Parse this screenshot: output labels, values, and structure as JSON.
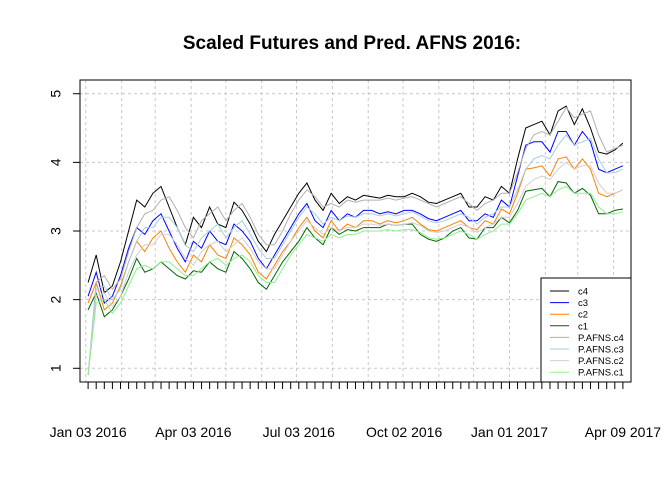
{
  "chart_data": {
    "type": "line",
    "title": "Scaled Futures and Pred. AFNS 2016:",
    "xlabel": "",
    "ylabel": "",
    "ylim": [
      0.8,
      5.2
    ],
    "yticks": [
      1,
      2,
      3,
      4,
      5
    ],
    "xlim": [
      "2015-12-27",
      "2017-04-16"
    ],
    "x_tick_labels": [
      {
        "date": "2016-01-03",
        "label": "Jan 03 2016"
      },
      {
        "date": "2016-04-03",
        "label": "Apr 03 2016"
      },
      {
        "date": "2016-07-03",
        "label": "Jul 03 2016"
      },
      {
        "date": "2016-10-02",
        "label": "Oct 02 2016"
      },
      {
        "date": "2017-01-01",
        "label": "Jan 01 2017"
      },
      {
        "date": "2017-04-09",
        "label": "Apr 09 2017"
      }
    ],
    "grid": true,
    "legend_position": "bottom-right",
    "x": [
      "2016-01-03",
      "2016-01-10",
      "2016-01-17",
      "2016-01-24",
      "2016-01-31",
      "2016-02-07",
      "2016-02-14",
      "2016-02-21",
      "2016-02-28",
      "2016-03-06",
      "2016-03-13",
      "2016-03-20",
      "2016-03-27",
      "2016-04-03",
      "2016-04-10",
      "2016-04-17",
      "2016-04-24",
      "2016-05-01",
      "2016-05-08",
      "2016-05-15",
      "2016-05-22",
      "2016-05-29",
      "2016-06-05",
      "2016-06-12",
      "2016-06-19",
      "2016-06-26",
      "2016-07-03",
      "2016-07-10",
      "2016-07-17",
      "2016-07-24",
      "2016-07-31",
      "2016-08-07",
      "2016-08-14",
      "2016-08-21",
      "2016-08-28",
      "2016-09-04",
      "2016-09-11",
      "2016-09-18",
      "2016-09-25",
      "2016-10-02",
      "2016-10-09",
      "2016-10-16",
      "2016-10-23",
      "2016-10-30",
      "2016-11-06",
      "2016-11-13",
      "2016-11-20",
      "2016-11-27",
      "2016-12-04",
      "2016-12-11",
      "2016-12-18",
      "2016-12-25",
      "2017-01-01",
      "2017-01-08",
      "2017-01-15",
      "2017-01-22",
      "2017-01-29",
      "2017-02-05",
      "2017-02-12",
      "2017-02-19",
      "2017-02-26",
      "2017-03-05",
      "2017-03-12",
      "2017-03-19",
      "2017-03-26",
      "2017-04-02",
      "2017-04-09"
    ],
    "series": [
      {
        "name": "c4",
        "color": "#000000",
        "values": [
          2.25,
          2.65,
          2.1,
          2.2,
          2.55,
          3.0,
          3.45,
          3.35,
          3.55,
          3.65,
          3.35,
          3.05,
          2.8,
          3.2,
          3.05,
          3.35,
          3.1,
          3.05,
          3.42,
          3.3,
          3.1,
          2.85,
          2.7,
          2.95,
          3.15,
          3.35,
          3.55,
          3.7,
          3.45,
          3.3,
          3.55,
          3.4,
          3.5,
          3.45,
          3.52,
          3.5,
          3.48,
          3.52,
          3.5,
          3.5,
          3.55,
          3.5,
          3.42,
          3.4,
          3.45,
          3.5,
          3.55,
          3.35,
          3.35,
          3.5,
          3.45,
          3.65,
          3.55,
          4.05,
          4.5,
          4.55,
          4.6,
          4.4,
          4.75,
          4.82,
          4.55,
          4.78,
          4.5,
          4.15,
          4.12,
          4.18,
          4.28
        ]
      },
      {
        "name": "c3",
        "color": "#0000ff",
        "values": [
          2.05,
          2.4,
          1.95,
          2.05,
          2.35,
          2.75,
          3.05,
          2.95,
          3.15,
          3.25,
          3.0,
          2.75,
          2.55,
          2.85,
          2.75,
          3.0,
          2.85,
          2.8,
          3.1,
          3.0,
          2.85,
          2.6,
          2.45,
          2.65,
          2.85,
          3.05,
          3.25,
          3.4,
          3.15,
          3.05,
          3.3,
          3.15,
          3.25,
          3.2,
          3.3,
          3.3,
          3.25,
          3.28,
          3.25,
          3.3,
          3.3,
          3.25,
          3.18,
          3.15,
          3.2,
          3.25,
          3.3,
          3.15,
          3.15,
          3.25,
          3.2,
          3.45,
          3.35,
          3.8,
          4.25,
          4.3,
          4.3,
          4.15,
          4.45,
          4.45,
          4.25,
          4.45,
          4.3,
          3.9,
          3.85,
          3.9,
          3.95
        ]
      },
      {
        "name": "c2",
        "color": "#ff7f00",
        "values": [
          1.95,
          2.25,
          1.85,
          1.95,
          2.2,
          2.55,
          2.85,
          2.7,
          2.9,
          3.0,
          2.75,
          2.55,
          2.4,
          2.65,
          2.55,
          2.8,
          2.65,
          2.6,
          2.9,
          2.8,
          2.65,
          2.4,
          2.3,
          2.5,
          2.7,
          2.85,
          3.05,
          3.2,
          3.0,
          2.9,
          3.15,
          3.0,
          3.1,
          3.05,
          3.15,
          3.15,
          3.1,
          3.15,
          3.12,
          3.15,
          3.2,
          3.1,
          3.02,
          3.0,
          3.05,
          3.1,
          3.15,
          3.05,
          3.02,
          3.15,
          3.1,
          3.32,
          3.25,
          3.55,
          3.9,
          3.92,
          3.95,
          3.8,
          4.05,
          4.08,
          3.9,
          4.05,
          3.9,
          3.55,
          3.5,
          3.55,
          3.6
        ]
      },
      {
        "name": "c1",
        "color": "#006400",
        "values": [
          1.85,
          2.1,
          1.75,
          1.85,
          2.05,
          2.3,
          2.6,
          2.4,
          2.45,
          2.55,
          2.45,
          2.35,
          2.3,
          2.42,
          2.4,
          2.55,
          2.45,
          2.4,
          2.7,
          2.6,
          2.45,
          2.25,
          2.15,
          2.35,
          2.55,
          2.7,
          2.85,
          3.05,
          2.9,
          2.8,
          3.05,
          2.95,
          3.02,
          3.0,
          3.05,
          3.05,
          3.05,
          3.1,
          3.08,
          3.1,
          3.1,
          2.95,
          2.88,
          2.85,
          2.9,
          3.0,
          3.05,
          2.9,
          2.88,
          3.05,
          3.05,
          3.2,
          3.12,
          3.3,
          3.58,
          3.6,
          3.62,
          3.5,
          3.72,
          3.7,
          3.55,
          3.62,
          3.52,
          3.25,
          3.25,
          3.3,
          3.32
        ]
      },
      {
        "name": "P.AFNS.c4",
        "color": "#b0b0b0",
        "values": [
          0.9,
          2.25,
          2.35,
          2.15,
          2.3,
          2.7,
          3.05,
          3.25,
          3.3,
          3.45,
          3.5,
          3.3,
          3.05,
          2.9,
          3.15,
          3.25,
          3.35,
          3.15,
          3.3,
          3.4,
          3.2,
          2.95,
          2.8,
          2.8,
          3.0,
          3.25,
          3.45,
          3.6,
          3.5,
          3.35,
          3.4,
          3.35,
          3.45,
          3.42,
          3.45,
          3.45,
          3.45,
          3.48,
          3.45,
          3.48,
          3.5,
          3.45,
          3.4,
          3.35,
          3.4,
          3.45,
          3.5,
          3.4,
          3.3,
          3.4,
          3.45,
          3.55,
          3.55,
          3.85,
          4.2,
          4.4,
          4.45,
          4.4,
          4.6,
          4.8,
          4.65,
          4.7,
          4.75,
          4.4,
          4.15,
          4.2,
          4.25
        ]
      },
      {
        "name": "P.AFNS.c3",
        "color": "#a6cee3",
        "values": [
          0.9,
          2.15,
          2.2,
          2.0,
          2.15,
          2.55,
          2.85,
          3.05,
          3.05,
          3.2,
          3.2,
          3.05,
          2.8,
          2.7,
          2.9,
          3.0,
          3.1,
          2.9,
          3.05,
          3.15,
          2.95,
          2.75,
          2.6,
          2.6,
          2.8,
          3.0,
          3.2,
          3.35,
          3.25,
          3.1,
          3.2,
          3.15,
          3.22,
          3.2,
          3.25,
          3.25,
          3.22,
          3.25,
          3.22,
          3.25,
          3.28,
          3.22,
          3.15,
          3.12,
          3.15,
          3.2,
          3.25,
          3.2,
          3.1,
          3.2,
          3.25,
          3.35,
          3.35,
          3.6,
          3.9,
          4.05,
          4.1,
          4.05,
          4.25,
          4.4,
          4.25,
          4.3,
          4.35,
          4.05,
          3.85,
          3.85,
          3.9
        ]
      },
      {
        "name": "P.AFNS.c2",
        "color": "#d0d0d0",
        "values": [
          0.9,
          2.05,
          2.1,
          1.9,
          2.05,
          2.4,
          2.65,
          2.8,
          2.8,
          2.95,
          2.95,
          2.8,
          2.6,
          2.5,
          2.7,
          2.8,
          2.85,
          2.7,
          2.8,
          2.9,
          2.75,
          2.55,
          2.45,
          2.45,
          2.65,
          2.85,
          3.0,
          3.15,
          3.05,
          2.95,
          3.05,
          3.0,
          3.05,
          3.05,
          3.1,
          3.1,
          3.08,
          3.1,
          3.08,
          3.1,
          3.12,
          3.08,
          3.0,
          2.98,
          3.0,
          3.05,
          3.1,
          3.05,
          2.98,
          3.05,
          3.1,
          3.2,
          3.2,
          3.4,
          3.65,
          3.75,
          3.8,
          3.75,
          3.9,
          4.0,
          3.9,
          3.95,
          3.95,
          3.7,
          3.55,
          3.55,
          3.6
        ]
      },
      {
        "name": "P.AFNS.c1",
        "color": "#90ee90",
        "values": [
          0.9,
          1.95,
          2.0,
          1.8,
          1.95,
          2.2,
          2.45,
          2.5,
          2.45,
          2.55,
          2.55,
          2.45,
          2.35,
          2.35,
          2.45,
          2.55,
          2.6,
          2.5,
          2.6,
          2.65,
          2.55,
          2.35,
          2.25,
          2.25,
          2.45,
          2.65,
          2.8,
          2.95,
          2.9,
          2.85,
          2.95,
          2.9,
          2.95,
          2.95,
          3.0,
          3.0,
          3.0,
          3.02,
          3.0,
          3.02,
          3.02,
          2.98,
          2.9,
          2.88,
          2.9,
          2.95,
          3.0,
          2.95,
          2.88,
          2.95,
          3.0,
          3.1,
          3.1,
          3.25,
          3.45,
          3.5,
          3.55,
          3.5,
          3.6,
          3.65,
          3.55,
          3.55,
          3.55,
          3.35,
          3.25,
          3.25,
          3.28
        ]
      }
    ]
  }
}
